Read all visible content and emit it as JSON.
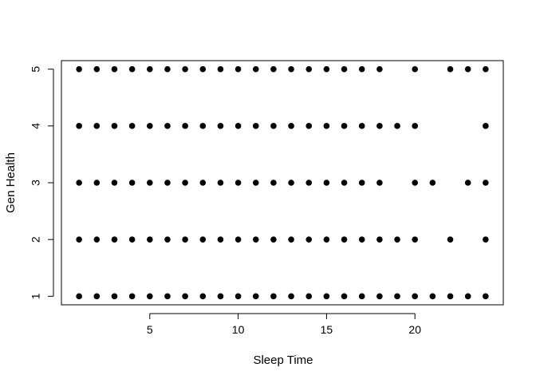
{
  "chart_data": {
    "type": "scatter",
    "title": "",
    "xlabel": "Sleep Time",
    "ylabel": "Gen Health",
    "xlim": [
      0,
      25
    ],
    "ylim": [
      0.85,
      5.15
    ],
    "x_ticks": [
      5,
      10,
      15,
      20
    ],
    "y_ticks": [
      1,
      2,
      3,
      4,
      5
    ],
    "grid": false,
    "legend": "none",
    "point_color": "#000000",
    "points": [
      {
        "x": 1,
        "y": 5
      },
      {
        "x": 2,
        "y": 5
      },
      {
        "x": 3,
        "y": 5
      },
      {
        "x": 4,
        "y": 5
      },
      {
        "x": 5,
        "y": 5
      },
      {
        "x": 6,
        "y": 5
      },
      {
        "x": 7,
        "y": 5
      },
      {
        "x": 8,
        "y": 5
      },
      {
        "x": 9,
        "y": 5
      },
      {
        "x": 10,
        "y": 5
      },
      {
        "x": 11,
        "y": 5
      },
      {
        "x": 12,
        "y": 5
      },
      {
        "x": 13,
        "y": 5
      },
      {
        "x": 14,
        "y": 5
      },
      {
        "x": 15,
        "y": 5
      },
      {
        "x": 16,
        "y": 5
      },
      {
        "x": 17,
        "y": 5
      },
      {
        "x": 18,
        "y": 5
      },
      {
        "x": 20,
        "y": 5
      },
      {
        "x": 22,
        "y": 5
      },
      {
        "x": 23,
        "y": 5
      },
      {
        "x": 24,
        "y": 5
      },
      {
        "x": 1,
        "y": 4
      },
      {
        "x": 2,
        "y": 4
      },
      {
        "x": 3,
        "y": 4
      },
      {
        "x": 4,
        "y": 4
      },
      {
        "x": 5,
        "y": 4
      },
      {
        "x": 6,
        "y": 4
      },
      {
        "x": 7,
        "y": 4
      },
      {
        "x": 8,
        "y": 4
      },
      {
        "x": 9,
        "y": 4
      },
      {
        "x": 10,
        "y": 4
      },
      {
        "x": 11,
        "y": 4
      },
      {
        "x": 12,
        "y": 4
      },
      {
        "x": 13,
        "y": 4
      },
      {
        "x": 14,
        "y": 4
      },
      {
        "x": 15,
        "y": 4
      },
      {
        "x": 16,
        "y": 4
      },
      {
        "x": 17,
        "y": 4
      },
      {
        "x": 18,
        "y": 4
      },
      {
        "x": 19,
        "y": 4
      },
      {
        "x": 20,
        "y": 4
      },
      {
        "x": 24,
        "y": 4
      },
      {
        "x": 1,
        "y": 3
      },
      {
        "x": 2,
        "y": 3
      },
      {
        "x": 3,
        "y": 3
      },
      {
        "x": 4,
        "y": 3
      },
      {
        "x": 5,
        "y": 3
      },
      {
        "x": 6,
        "y": 3
      },
      {
        "x": 7,
        "y": 3
      },
      {
        "x": 8,
        "y": 3
      },
      {
        "x": 9,
        "y": 3
      },
      {
        "x": 10,
        "y": 3
      },
      {
        "x": 11,
        "y": 3
      },
      {
        "x": 12,
        "y": 3
      },
      {
        "x": 13,
        "y": 3
      },
      {
        "x": 14,
        "y": 3
      },
      {
        "x": 15,
        "y": 3
      },
      {
        "x": 16,
        "y": 3
      },
      {
        "x": 17,
        "y": 3
      },
      {
        "x": 18,
        "y": 3
      },
      {
        "x": 20,
        "y": 3
      },
      {
        "x": 21,
        "y": 3
      },
      {
        "x": 23,
        "y": 3
      },
      {
        "x": 24,
        "y": 3
      },
      {
        "x": 1,
        "y": 2
      },
      {
        "x": 2,
        "y": 2
      },
      {
        "x": 3,
        "y": 2
      },
      {
        "x": 4,
        "y": 2
      },
      {
        "x": 5,
        "y": 2
      },
      {
        "x": 6,
        "y": 2
      },
      {
        "x": 7,
        "y": 2
      },
      {
        "x": 8,
        "y": 2
      },
      {
        "x": 9,
        "y": 2
      },
      {
        "x": 10,
        "y": 2
      },
      {
        "x": 11,
        "y": 2
      },
      {
        "x": 12,
        "y": 2
      },
      {
        "x": 13,
        "y": 2
      },
      {
        "x": 14,
        "y": 2
      },
      {
        "x": 15,
        "y": 2
      },
      {
        "x": 16,
        "y": 2
      },
      {
        "x": 17,
        "y": 2
      },
      {
        "x": 18,
        "y": 2
      },
      {
        "x": 19,
        "y": 2
      },
      {
        "x": 20,
        "y": 2
      },
      {
        "x": 22,
        "y": 2
      },
      {
        "x": 24,
        "y": 2
      },
      {
        "x": 1,
        "y": 1
      },
      {
        "x": 2,
        "y": 1
      },
      {
        "x": 3,
        "y": 1
      },
      {
        "x": 4,
        "y": 1
      },
      {
        "x": 5,
        "y": 1
      },
      {
        "x": 6,
        "y": 1
      },
      {
        "x": 7,
        "y": 1
      },
      {
        "x": 8,
        "y": 1
      },
      {
        "x": 9,
        "y": 1
      },
      {
        "x": 10,
        "y": 1
      },
      {
        "x": 11,
        "y": 1
      },
      {
        "x": 12,
        "y": 1
      },
      {
        "x": 13,
        "y": 1
      },
      {
        "x": 14,
        "y": 1
      },
      {
        "x": 15,
        "y": 1
      },
      {
        "x": 16,
        "y": 1
      },
      {
        "x": 17,
        "y": 1
      },
      {
        "x": 18,
        "y": 1
      },
      {
        "x": 19,
        "y": 1
      },
      {
        "x": 20,
        "y": 1
      },
      {
        "x": 21,
        "y": 1
      },
      {
        "x": 22,
        "y": 1
      },
      {
        "x": 23,
        "y": 1
      },
      {
        "x": 24,
        "y": 1
      }
    ]
  }
}
